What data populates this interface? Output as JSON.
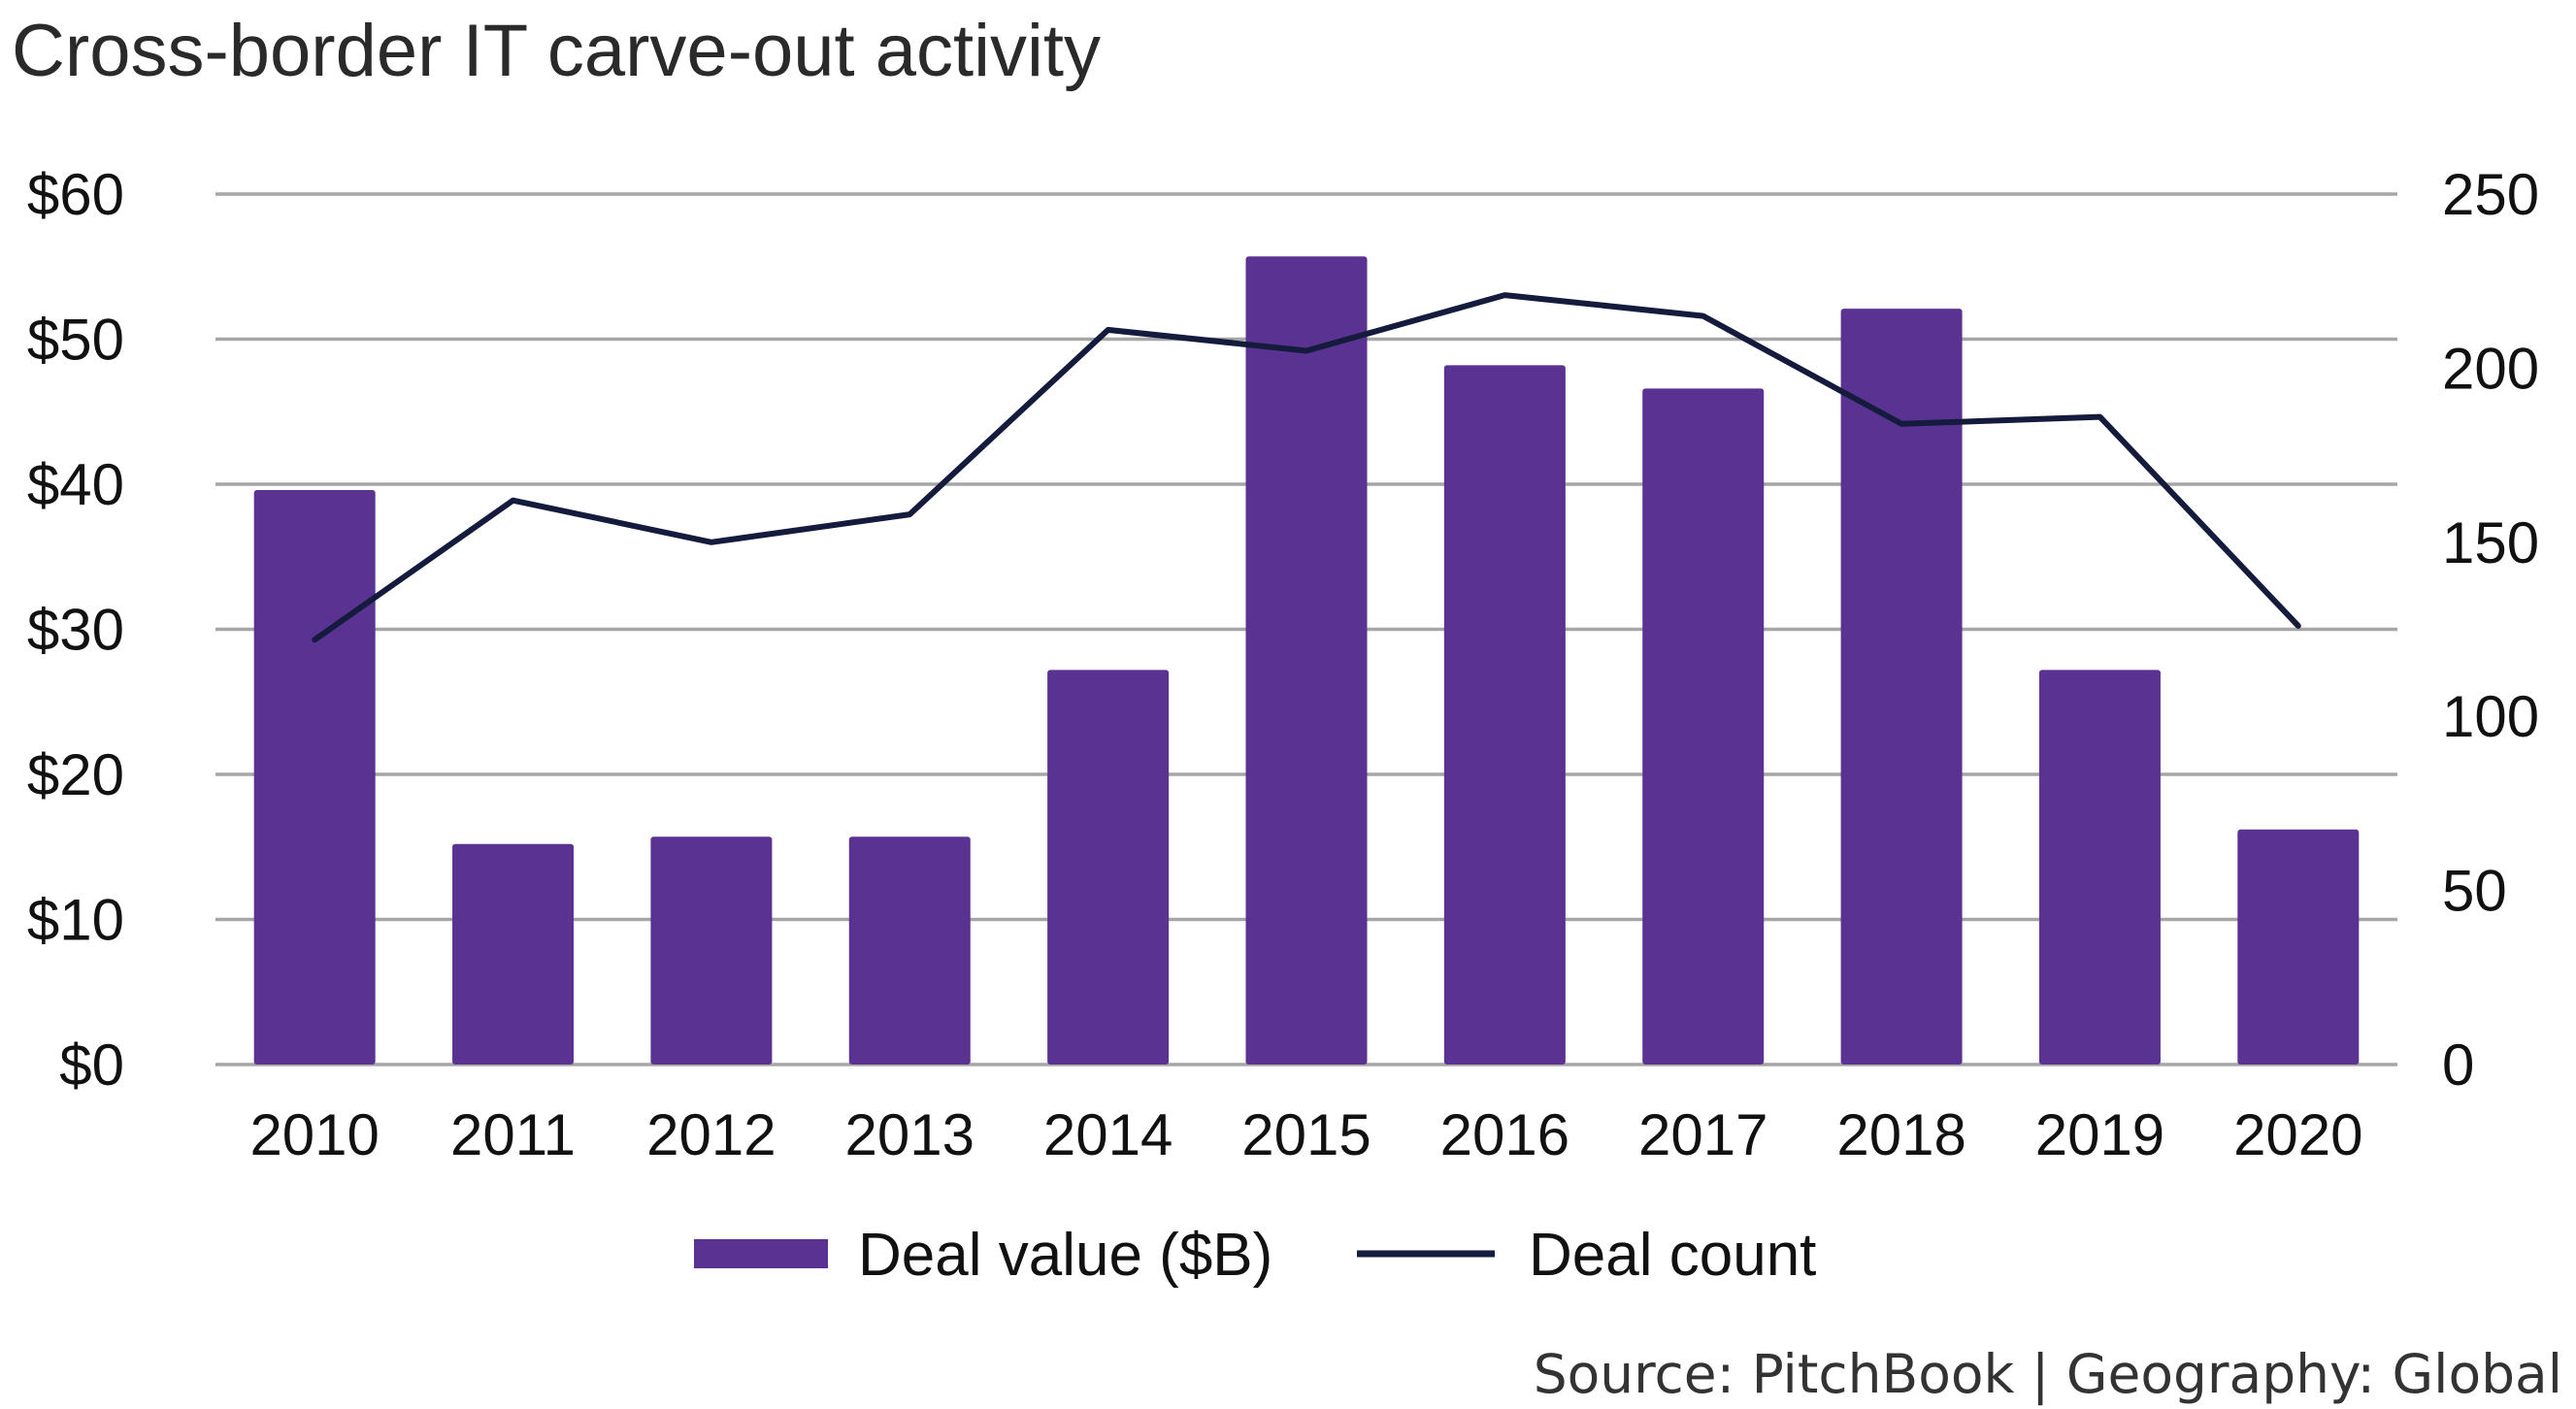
{
  "chart_data": {
    "type": "bar",
    "title": "Cross-border IT carve-out activity",
    "categories": [
      "2010",
      "2011",
      "2012",
      "2013",
      "2014",
      "2015",
      "2016",
      "2017",
      "2018",
      "2019",
      "2020"
    ],
    "series": [
      {
        "name": "Deal value ($B)",
        "type": "bar",
        "axis": "left",
        "color": "#5a3291",
        "values": [
          39.6,
          15.2,
          15.7,
          15.7,
          27.2,
          55.7,
          48.2,
          46.6,
          52.1,
          27.2,
          16.2
        ]
      },
      {
        "name": "Deal count",
        "type": "line",
        "axis": "right",
        "color": "#141b3c",
        "values": [
          122,
          162,
          150,
          158,
          211,
          205,
          221,
          215,
          184,
          186,
          126
        ]
      }
    ],
    "y_left": {
      "min": 0,
      "max": 60,
      "ticks": [
        0,
        10,
        20,
        30,
        40,
        50,
        60
      ],
      "tick_labels": [
        "$0",
        "$10",
        "$20",
        "$30",
        "$40",
        "$50",
        "$60"
      ]
    },
    "y_right": {
      "min": 0,
      "max": 250,
      "ticks": [
        0,
        50,
        100,
        150,
        200,
        250
      ],
      "tick_labels": [
        "0",
        "50",
        "100",
        "150",
        "200",
        "250"
      ]
    },
    "grid": true,
    "legend_position": "bottom",
    "source": "Source: PitchBook | Geography: Global",
    "gridline_color": "#a6a6a6"
  }
}
